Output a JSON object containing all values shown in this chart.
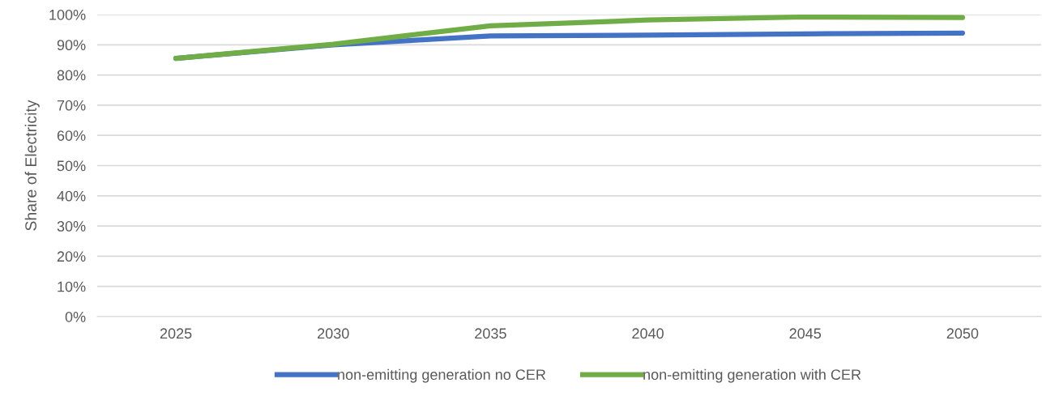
{
  "chart_data": {
    "type": "line",
    "ylabel": "Share of Electricity",
    "categories": [
      "2025",
      "2030",
      "2035",
      "2040",
      "2045",
      "2050"
    ],
    "series": [
      {
        "name": "non-emitting generation no CER",
        "color": "#4472c4",
        "values": [
          85.5,
          90.0,
          92.9,
          93.2,
          93.6,
          93.9
        ]
      },
      {
        "name": "non-emitting generation with CER",
        "color": "#70ad47",
        "values": [
          85.5,
          90.2,
          96.3,
          98.2,
          99.2,
          99.0
        ]
      }
    ],
    "ylim": [
      0,
      100
    ],
    "yticks": [
      {
        "value": 0,
        "label": "0%"
      },
      {
        "value": 10,
        "label": "10%"
      },
      {
        "value": 20,
        "label": "20%"
      },
      {
        "value": 30,
        "label": "30%"
      },
      {
        "value": 40,
        "label": "40%"
      },
      {
        "value": 50,
        "label": "50%"
      },
      {
        "value": 60,
        "label": "60%"
      },
      {
        "value": 70,
        "label": "70%"
      },
      {
        "value": 80,
        "label": "80%"
      },
      {
        "value": 90,
        "label": "90%"
      },
      {
        "value": 100,
        "label": "100%"
      }
    ],
    "grid": "y",
    "legend": "bottom",
    "marker": "none",
    "line_style": "solid"
  }
}
